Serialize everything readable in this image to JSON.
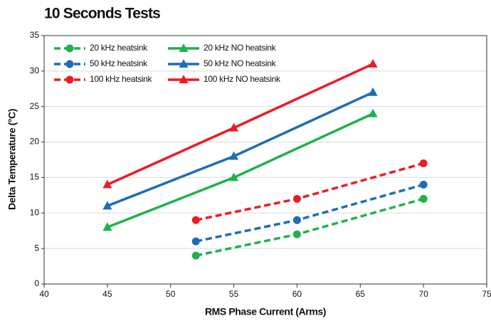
{
  "chart_data": {
    "type": "line",
    "title": "10 Seconds Tests",
    "x_label": "RMS Phase Current (Arms)",
    "y_label": "Delta Temperature (°C)",
    "xlim": [
      40,
      75
    ],
    "xticks": [
      40,
      45,
      50,
      55,
      60,
      65,
      70,
      75
    ],
    "ylim": [
      0,
      35
    ],
    "yticks": [
      0,
      5,
      10,
      15,
      20,
      25,
      30,
      35
    ],
    "grid": true,
    "legend": "upper left",
    "series": [
      {
        "name": "20 kHz heatsink",
        "color": "#1fb24a",
        "style": "dashed",
        "marker": "circle",
        "x": [
          52,
          60,
          70
        ],
        "values": [
          4,
          7,
          12
        ]
      },
      {
        "name": "50 kHz heatsink",
        "color": "#1f6db5",
        "style": "dashed",
        "marker": "circle",
        "x": [
          52,
          60,
          70
        ],
        "values": [
          6,
          9,
          14
        ]
      },
      {
        "name": "100 kHz heatsink",
        "color": "#ec1c24",
        "style": "dashed",
        "marker": "circle",
        "x": [
          52,
          60,
          70
        ],
        "values": [
          9,
          12,
          17
        ]
      },
      {
        "name": "20 kHz  NO heatsink",
        "color": "#1fb24a",
        "style": "solid",
        "marker": "triangle",
        "x": [
          45,
          55,
          66
        ],
        "values": [
          8,
          15,
          24
        ]
      },
      {
        "name": "50 kHz  NO heatsink",
        "color": "#1f6db5",
        "style": "solid",
        "marker": "triangle",
        "x": [
          45,
          55,
          66
        ],
        "values": [
          11,
          18,
          27
        ]
      },
      {
        "name": "100 kHz  NO heatsink",
        "color": "#ec1c24",
        "style": "solid",
        "marker": "triangle",
        "x": [
          45,
          55,
          66
        ],
        "values": [
          14,
          22,
          31
        ]
      }
    ]
  }
}
